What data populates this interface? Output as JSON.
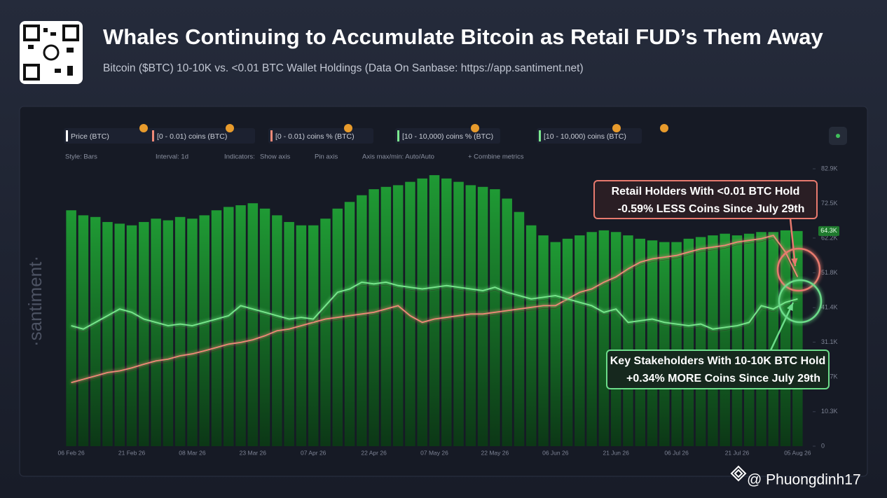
{
  "header": {
    "title": "Whales Continuing to Accumulate Bitcoin as Retail FUD’s Them Away",
    "subtitle": "Bitcoin ($BTC) 10-10K vs. <0.01 BTC Wallet Holdings (Data On Sanbase: https://app.santiment.net)"
  },
  "toolbar": {
    "metrics": [
      "Price (BTC)",
      "[0 - 0.01) coins (BTC)",
      "[0 - 0.01) coins % (BTC)",
      "[10 - 10,000) coins % (BTC)",
      "[10 - 10,000) coins (BTC)"
    ],
    "options": [
      "Style: Bars",
      "Interval: 1d",
      "Indicators:",
      "Show axis",
      "Pin axis",
      "Axis max/min: Auto/Auto",
      "+ Combine metrics"
    ]
  },
  "brand": "·santiment·",
  "credit": "@ Phuongdinh17",
  "chart_data": {
    "type": "bar-line",
    "categories": [
      "06 Feb 26",
      null,
      null,
      null,
      null,
      "21 Feb 26",
      null,
      null,
      null,
      null,
      "08 Mar 26",
      null,
      null,
      null,
      null,
      "23 Mar 26",
      null,
      null,
      null,
      null,
      "07 Apr 26",
      null,
      null,
      null,
      null,
      "22 Apr 26",
      null,
      null,
      null,
      null,
      "07 May 26",
      null,
      null,
      null,
      null,
      "22 May 26",
      null,
      null,
      null,
      null,
      "06 Jun 26",
      null,
      null,
      null,
      null,
      "21 Jun 26",
      null,
      null,
      null,
      null,
      "06 Jul 26",
      null,
      null,
      null,
      null,
      "21 Jul 26",
      null,
      null,
      null,
      null,
      "05 Aug 26"
    ],
    "series": [
      {
        "name": "Price (BTC)",
        "color": "#1f8a30",
        "values": [
          70500,
          69000,
          68500,
          67000,
          66500,
          66000,
          67000,
          68000,
          67500,
          68500,
          68000,
          69000,
          70500,
          71500,
          72000,
          72600,
          71000,
          69000,
          67000,
          66000,
          66000,
          68000,
          71000,
          73000,
          75000,
          76800,
          77500,
          78000,
          79000,
          80000,
          81000,
          80000,
          79000,
          78000,
          77500,
          76800,
          74000,
          70000,
          66000,
          63000,
          61000,
          62000,
          63000,
          64000,
          64500,
          64000,
          63000,
          62000,
          61500,
          61000,
          61000,
          62000,
          62500,
          63000,
          63500,
          63000,
          63500,
          64000,
          64000,
          64500,
          64300
        ]
      },
      {
        "name": "[0 - 0.01) coins (BTC)",
        "color": "#f08a78",
        "values": [
          19000,
          20000,
          21000,
          22000,
          22500,
          23400,
          24500,
          25500,
          26000,
          27000,
          27600,
          28500,
          29500,
          30500,
          31000,
          31800,
          33000,
          34500,
          35000,
          36000,
          37000,
          38000,
          38500,
          39000,
          39500,
          40000,
          41000,
          42000,
          39000,
          37000,
          38000,
          38500,
          39000,
          39500,
          39500,
          40000,
          40500,
          41000,
          41500,
          42000,
          42000,
          44000,
          46000,
          47000,
          49000,
          50600,
          53000,
          55000,
          56000,
          56500,
          57000,
          58000,
          59000,
          59500,
          60000,
          61000,
          61500,
          62000,
          63000,
          58000,
          50600
        ]
      },
      {
        "name": "[10 - 10,000) coins (BTC)",
        "color": "#7be88f",
        "values": [
          36000,
          35000,
          37000,
          39000,
          41000,
          40000,
          38000,
          37000,
          36000,
          36500,
          36000,
          37000,
          38000,
          39000,
          42000,
          41000,
          40000,
          39000,
          38000,
          38500,
          38000,
          42000,
          46000,
          47000,
          49000,
          48500,
          49000,
          48000,
          47500,
          47000,
          47500,
          48000,
          47500,
          47000,
          46500,
          47500,
          46000,
          45000,
          44000,
          44500,
          45000,
          44000,
          43000,
          42000,
          40000,
          41000,
          37000,
          37500,
          38000,
          37000,
          36500,
          36000,
          36500,
          35000,
          35500,
          36000,
          37000,
          42000,
          41000,
          43000,
          44000
        ]
      }
    ],
    "ylim": [
      0,
      82900
    ],
    "yticks": [
      0,
      {
        "value": 10300,
        "label": "10.3K"
      },
      {
        "value": 20700,
        "label": "20.7K"
      },
      {
        "value": 31100,
        "label": "31.1K"
      },
      {
        "value": 41400,
        "label": "41.4K"
      },
      {
        "value": 51800,
        "label": "51.8K"
      },
      {
        "value": 62200,
        "label": "62.2K"
      },
      {
        "value": 72500,
        "label": "72.5K"
      },
      {
        "value": 82900,
        "label": "82.9K"
      }
    ],
    "current_value_label": "64.3K",
    "annotations": [
      {
        "lines": [
          "Retail Holders With <0.01 BTC Hold",
          "-0.59% LESS Coins Since July 29th"
        ],
        "color": "#e87a6e"
      },
      {
        "lines": [
          "Key Stakeholders With 10-10K BTC Hold",
          "+0.34% MORE Coins Since July 29th"
        ],
        "color": "#6cdc8a"
      }
    ]
  }
}
